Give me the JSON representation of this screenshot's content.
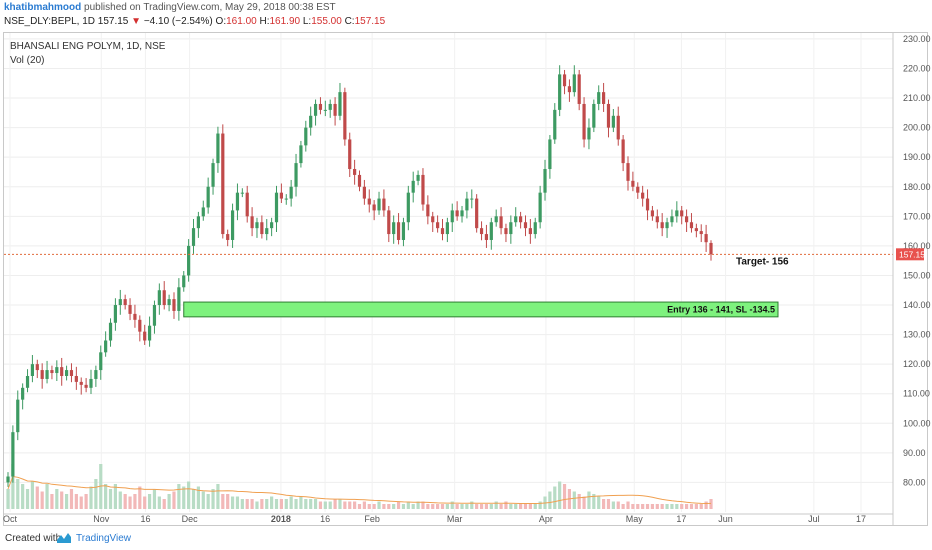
{
  "header": {
    "author": "khatibmahmood",
    "published_text": "published on TradingView.com, May 29, 2018 00:38 EST",
    "symbol": "NSE_DLY:BEPL, 1D",
    "last": "157.15",
    "arrow": "▼",
    "change": "−4.10 (−2.54%)",
    "open_label": "O:",
    "open": "161.00",
    "high_label": "H:",
    "high": "161.90",
    "low_label": "L:",
    "low": "155.00",
    "close_label": "C:",
    "close": "157.15"
  },
  "legend": {
    "title": "BHANSALI ENG POLYM, 1D, NSE",
    "volume": "Vol (20)"
  },
  "footer": {
    "created": "Created with",
    "brand": "TradingView"
  },
  "colors": {
    "up": "#3d9a62",
    "down": "#c04a4a",
    "up_volume": "#b8dcc5",
    "down_volume": "#f2b8b8",
    "zone_fill": "#7ef27e",
    "zone_border": "#2e7d32",
    "price_line": "#e06b3c",
    "price_label_bg": "#e8524e",
    "volume_ma": "#f0a050"
  },
  "chart_data": {
    "type": "candlestick",
    "title": "BHANSALI ENG POLYM, 1D, NSE",
    "ylim": [
      70,
      232
    ],
    "y_ticks": [
      "80.00",
      "90.00",
      "100.00",
      "110.00",
      "120.00",
      "130.00",
      "140.00",
      "150.00",
      "160.00",
      "170.00",
      "180.00",
      "190.00",
      "200.00",
      "210.00",
      "220.00",
      "230.00"
    ],
    "x_ticks": [
      {
        "label": "Oct",
        "date": "2017-10-01"
      },
      {
        "label": "Nov",
        "date": "2017-11-01"
      },
      {
        "label": "16",
        "date": "2017-11-16"
      },
      {
        "label": "Dec",
        "date": "2017-12-01"
      },
      {
        "label": "2018",
        "date": "2018-01-01"
      },
      {
        "label": "16",
        "date": "2018-01-16"
      },
      {
        "label": "Feb",
        "date": "2018-02-01"
      },
      {
        "label": "Mar",
        "date": "2018-03-01"
      },
      {
        "label": "Apr",
        "date": "2018-04-01"
      },
      {
        "label": "May",
        "date": "2018-05-01"
      },
      {
        "label": "17",
        "date": "2018-05-17"
      },
      {
        "label": "Jun",
        "date": "2018-06-01"
      },
      {
        "label": "Jul",
        "date": "2018-07-01"
      },
      {
        "label": "17",
        "date": "2018-07-17"
      }
    ],
    "closes": [
      82,
      97,
      108,
      112,
      116,
      120,
      118,
      115,
      118,
      117,
      119,
      116,
      118,
      116,
      114,
      113,
      112,
      115,
      118,
      124,
      128,
      134,
      140,
      142,
      140,
      137,
      135,
      131,
      128,
      133,
      140,
      145,
      140,
      142,
      138,
      146,
      150,
      160,
      166,
      170,
      173,
      180,
      188,
      198,
      164,
      162,
      172,
      178,
      178,
      170,
      166,
      168,
      164,
      166,
      168,
      178,
      176,
      176,
      180,
      188,
      194,
      200,
      204,
      208,
      206,
      206,
      208,
      204,
      212,
      196,
      186,
      184,
      180,
      176,
      174,
      172,
      176,
      172,
      164,
      168,
      162,
      168,
      178,
      182,
      184,
      174,
      170,
      168,
      166,
      164,
      168,
      172,
      170,
      172,
      176,
      176,
      166,
      164,
      162,
      168,
      170,
      166,
      164,
      168,
      170,
      168,
      166,
      164,
      168,
      178,
      186,
      196,
      206,
      218,
      214,
      212,
      218,
      208,
      196,
      200,
      208,
      212,
      208,
      200,
      204,
      196,
      188,
      182,
      180,
      178,
      176,
      172,
      170,
      168,
      166,
      168,
      170,
      172,
      170,
      168,
      166,
      165,
      164,
      161.25,
      157.15
    ],
    "volume_rel": [
      0.4,
      0.9,
      0.6,
      0.5,
      0.4,
      0.55,
      0.45,
      0.35,
      0.5,
      0.3,
      0.4,
      0.35,
      0.3,
      0.4,
      0.3,
      0.25,
      0.3,
      0.45,
      0.6,
      0.9,
      0.5,
      0.4,
      0.5,
      0.35,
      0.3,
      0.25,
      0.3,
      0.45,
      0.25,
      0.3,
      0.4,
      0.25,
      0.2,
      0.3,
      0.35,
      0.5,
      0.45,
      0.55,
      0.4,
      0.45,
      0.35,
      0.3,
      0.4,
      0.5,
      0.3,
      0.3,
      0.25,
      0.25,
      0.2,
      0.2,
      0.2,
      0.15,
      0.2,
      0.2,
      0.25,
      0.2,
      0.2,
      0.2,
      0.25,
      0.2,
      0.25,
      0.2,
      0.2,
      0.2,
      0.15,
      0.15,
      0.15,
      0.2,
      0.2,
      0.15,
      0.15,
      0.15,
      0.1,
      0.15,
      0.1,
      0.1,
      0.15,
      0.1,
      0.1,
      0.1,
      0.15,
      0.1,
      0.15,
      0.1,
      0.15,
      0.15,
      0.1,
      0.1,
      0.1,
      0.1,
      0.1,
      0.15,
      0.1,
      0.1,
      0.1,
      0.15,
      0.1,
      0.1,
      0.1,
      0.1,
      0.15,
      0.1,
      0.15,
      0.1,
      0.1,
      0.1,
      0.1,
      0.1,
      0.1,
      0.15,
      0.25,
      0.35,
      0.45,
      0.55,
      0.5,
      0.4,
      0.35,
      0.3,
      0.25,
      0.35,
      0.3,
      0.25,
      0.2,
      0.2,
      0.15,
      0.15,
      0.1,
      0.15,
      0.1,
      0.1,
      0.1,
      0.1,
      0.1,
      0.1,
      0.1,
      0.1,
      0.1,
      0.1,
      0.1,
      0.1,
      0.1,
      0.1,
      0.1,
      0.15,
      0.2
    ],
    "current_price": {
      "value": 157.15,
      "label": "157.15"
    },
    "annotations": [
      {
        "type": "zone",
        "from": 136,
        "to": 141,
        "label": "Entry 136 - 141, SL -134.5"
      },
      {
        "type": "text",
        "value": 156,
        "label": "Target- 156"
      }
    ]
  }
}
